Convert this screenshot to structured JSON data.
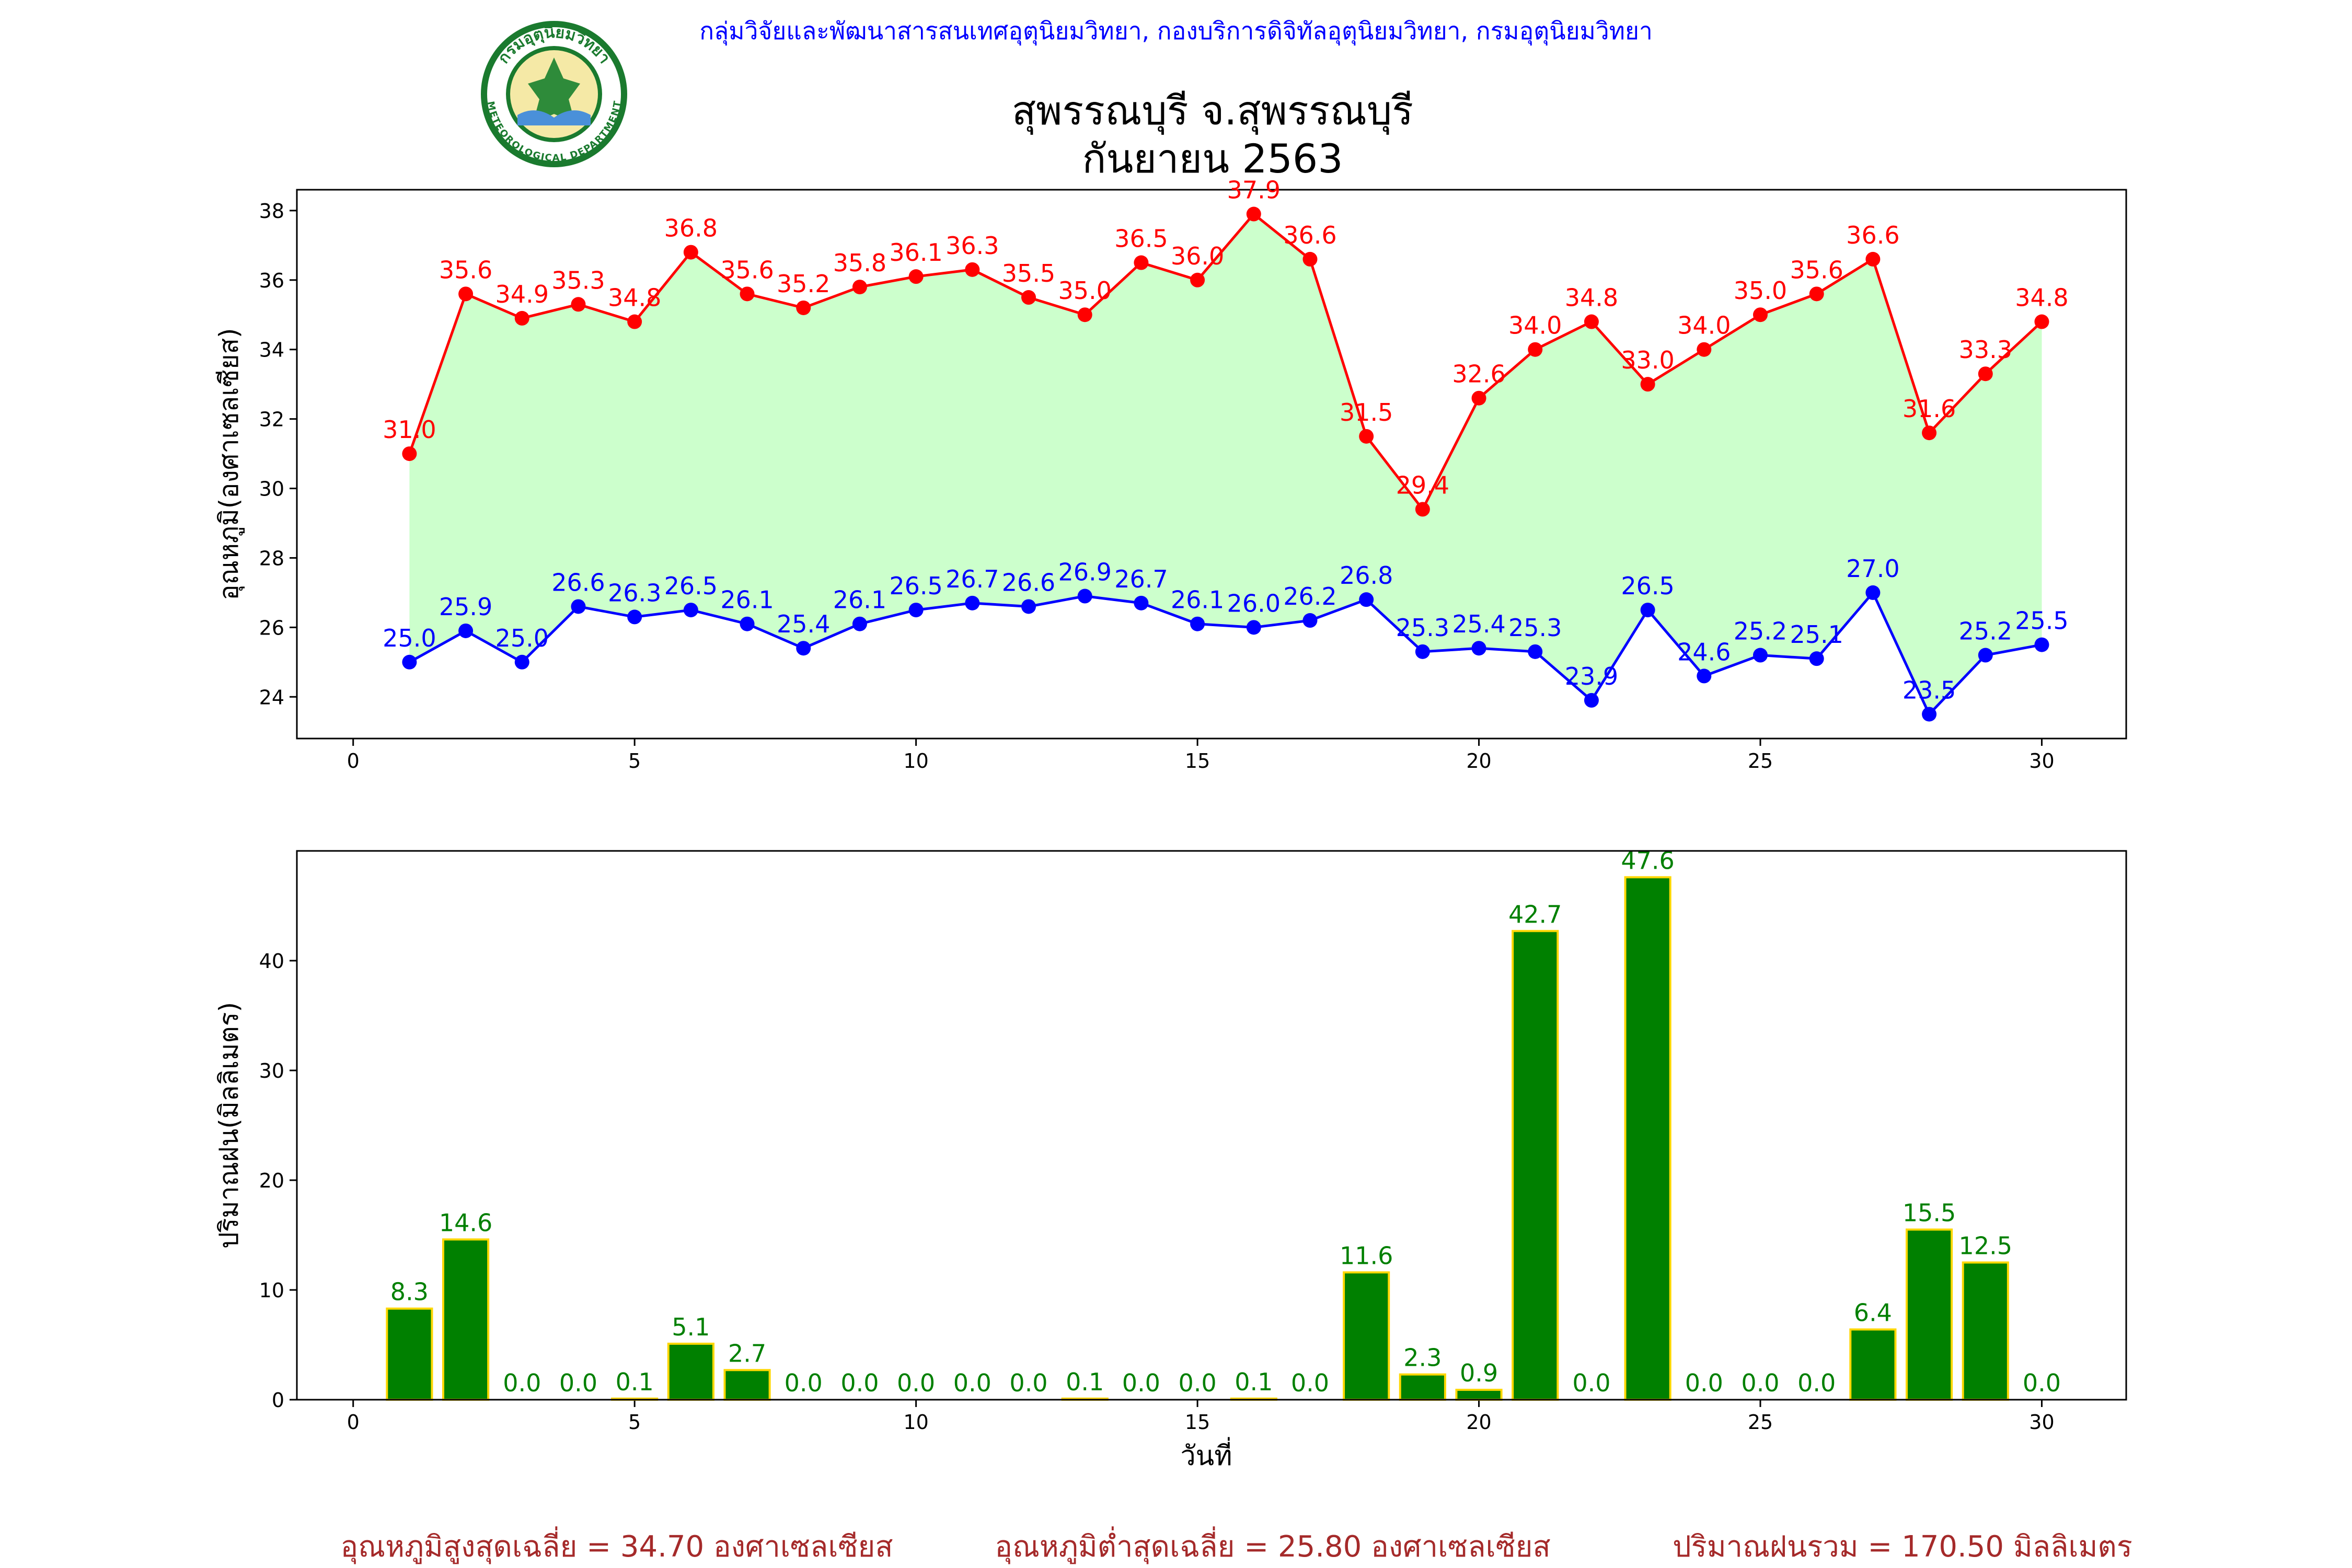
{
  "header": {
    "org_line": "กลุ่มวิจัยและพัฒนาสารสนเทศอุตุนิยมวิทยา, กองบริการดิจิทัลอุตุนิยมวิทยา, กรมอุตุนิยมวิทยา",
    "title_line1": "สุพรรณบุรี จ.สุพรรณบุรี",
    "title_line2": "กันยายน 2563",
    "logo_top_text": "กรมอุตุนิยมวิทยา",
    "logo_bottom_text": "METEOROLOGICAL DEPARTMENT"
  },
  "colors": {
    "max": "#ff0000",
    "min": "#0000ff",
    "fill": "#ccffcc",
    "bar": "#008000",
    "bar_edge": "#ffd700",
    "bar_label": "#008000",
    "org": "#0000ff",
    "footer": "#a52a2a"
  },
  "chart_data": [
    {
      "type": "line",
      "ylabel": "อุณหภูมิ(องศาเซลเซียส)",
      "xlim": [
        -1,
        31.5
      ],
      "ylim": [
        22.8,
        38.6
      ],
      "xticks": [
        0,
        5,
        10,
        15,
        20,
        25,
        30
      ],
      "yticks": [
        24,
        26,
        28,
        30,
        32,
        34,
        36,
        38
      ],
      "x": [
        1,
        2,
        3,
        4,
        5,
        6,
        7,
        8,
        9,
        10,
        11,
        12,
        13,
        14,
        15,
        16,
        17,
        18,
        19,
        20,
        21,
        22,
        23,
        24,
        25,
        26,
        27,
        28,
        29,
        30
      ],
      "series": [
        {
          "key": "max",
          "values": [
            31.0,
            35.6,
            34.9,
            35.3,
            34.8,
            36.8,
            35.6,
            35.2,
            35.8,
            36.1,
            36.3,
            35.5,
            35.0,
            36.5,
            36.0,
            37.9,
            36.6,
            31.5,
            29.4,
            32.6,
            34.0,
            34.8,
            33.0,
            34.0,
            35.0,
            35.6,
            36.6,
            31.6,
            33.3,
            34.8
          ],
          "labels": [
            "31.0",
            "35.6",
            "34.9",
            "35.3",
            "34.8",
            "36.8",
            "35.6",
            "35.2",
            "35.8",
            "36.1",
            "36.3",
            "35.5",
            "35.0",
            "36.5",
            "36.0",
            "37.9",
            "36.6",
            "31.5",
            "29.4",
            "32.6",
            "34.0",
            "34.8",
            "33.0",
            "34.0",
            "35.0",
            "35.6",
            "36.6",
            "31.6",
            "33.3",
            "34.8"
          ]
        },
        {
          "key": "min",
          "values": [
            25.0,
            25.9,
            25.0,
            26.6,
            26.3,
            26.5,
            26.1,
            25.4,
            26.1,
            26.5,
            26.7,
            26.6,
            26.9,
            26.7,
            26.1,
            26.0,
            26.2,
            26.8,
            25.3,
            25.4,
            25.3,
            23.9,
            26.5,
            24.6,
            25.2,
            25.1,
            27.0,
            23.5,
            25.2,
            25.5
          ],
          "labels": [
            "25.0",
            "25.9",
            "25.0",
            "26.6",
            "26.3",
            "26.5",
            "26.1",
            "25.4",
            "26.1",
            "26.5",
            "26.7",
            "26.6",
            "26.9",
            "26.7",
            "26.1",
            "26.0",
            "26.2",
            "26.8",
            "25.3",
            "25.4",
            "25.3",
            "23.9",
            "26.5",
            "24.6",
            "25.2",
            "25.1",
            "27.0",
            "23.5",
            "25.2",
            "25.5"
          ]
        }
      ]
    },
    {
      "type": "bar",
      "xlabel": "วันที่",
      "ylabel": "ปริมาณฝน(มิลลิเมตร)",
      "xlim": [
        -1,
        31.5
      ],
      "ylim": [
        0,
        50
      ],
      "xticks": [
        0,
        5,
        10,
        15,
        20,
        25,
        30
      ],
      "yticks": [
        0,
        10,
        20,
        30,
        40
      ],
      "x": [
        1,
        2,
        3,
        4,
        5,
        6,
        7,
        8,
        9,
        10,
        11,
        12,
        13,
        14,
        15,
        16,
        17,
        18,
        19,
        20,
        21,
        22,
        23,
        24,
        25,
        26,
        27,
        28,
        29,
        30
      ],
      "values": [
        8.3,
        14.6,
        0.0,
        0.0,
        0.1,
        5.1,
        2.7,
        0.0,
        0.0,
        0.0,
        0.0,
        0.0,
        0.1,
        0.0,
        0.0,
        0.1,
        0.0,
        11.6,
        2.3,
        0.9,
        42.7,
        0.0,
        47.6,
        0.0,
        0.0,
        0.0,
        6.4,
        15.5,
        12.5,
        0.0
      ],
      "labels": [
        "8.3",
        "14.6",
        "0.0",
        "0.0",
        "0.1",
        "5.1",
        "2.7",
        "0.0",
        "0.0",
        "0.0",
        "0.0",
        "0.0",
        "0.1",
        "0.0",
        "0.0",
        "0.1",
        "0.0",
        "11.6",
        "2.3",
        "0.9",
        "42.7",
        "0.0",
        "47.6",
        "0.0",
        "0.0",
        "0.0",
        "6.4",
        "15.5",
        "12.5",
        "0.0"
      ]
    }
  ],
  "footer": {
    "avg_max": "อุณหภูมิสูงสุดเฉลี่ย = 34.70 องศาเซลเซียส",
    "avg_min": "อุณหภูมิต่ำสุดเฉลี่ย = 25.80 องศาเซลเซียส",
    "total_rain": "ปริมาณฝนรวม = 170.50 มิลลิเมตร"
  }
}
